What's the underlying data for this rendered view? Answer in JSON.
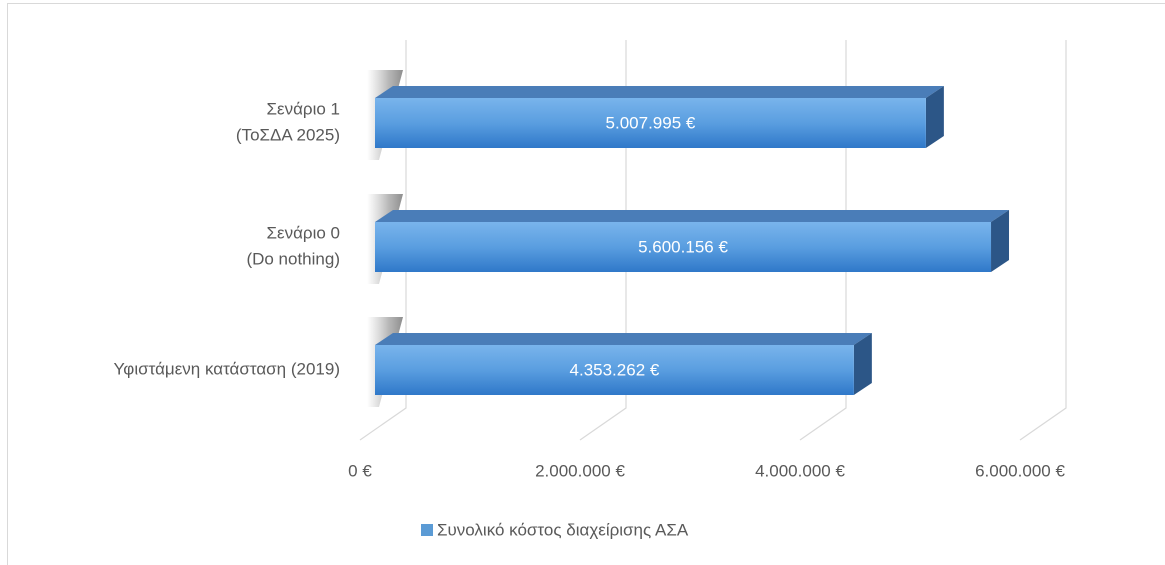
{
  "chart_data": {
    "type": "bar3d_horizontal",
    "categories": [
      [
        "Σενάριο 1",
        "(ΤοΣΔΑ 2025)"
      ],
      [
        "Σενάριο 0",
        "(Do nothing)"
      ],
      [
        "Υφιστάμενη κατάσταση (2019)"
      ]
    ],
    "series": [
      {
        "name": "Συνολικό κόστος διαχείρισης ΑΣΑ",
        "color": "#5b9bd5",
        "values": [
          5007995,
          5600156,
          4353262
        ],
        "value_labels": [
          "5.007.995 €",
          "5.600.156 €",
          "4.353.262 €"
        ]
      }
    ],
    "xlim": [
      0,
      6000000
    ],
    "xticks": [
      {
        "value": 0,
        "label": "0 €"
      },
      {
        "value": 2000000,
        "label": "2.000.000 €"
      },
      {
        "value": 4000000,
        "label": "4.000.000 €"
      },
      {
        "value": 6000000,
        "label": "6.000.000 €"
      }
    ],
    "grid": true,
    "legend": "bottom"
  }
}
